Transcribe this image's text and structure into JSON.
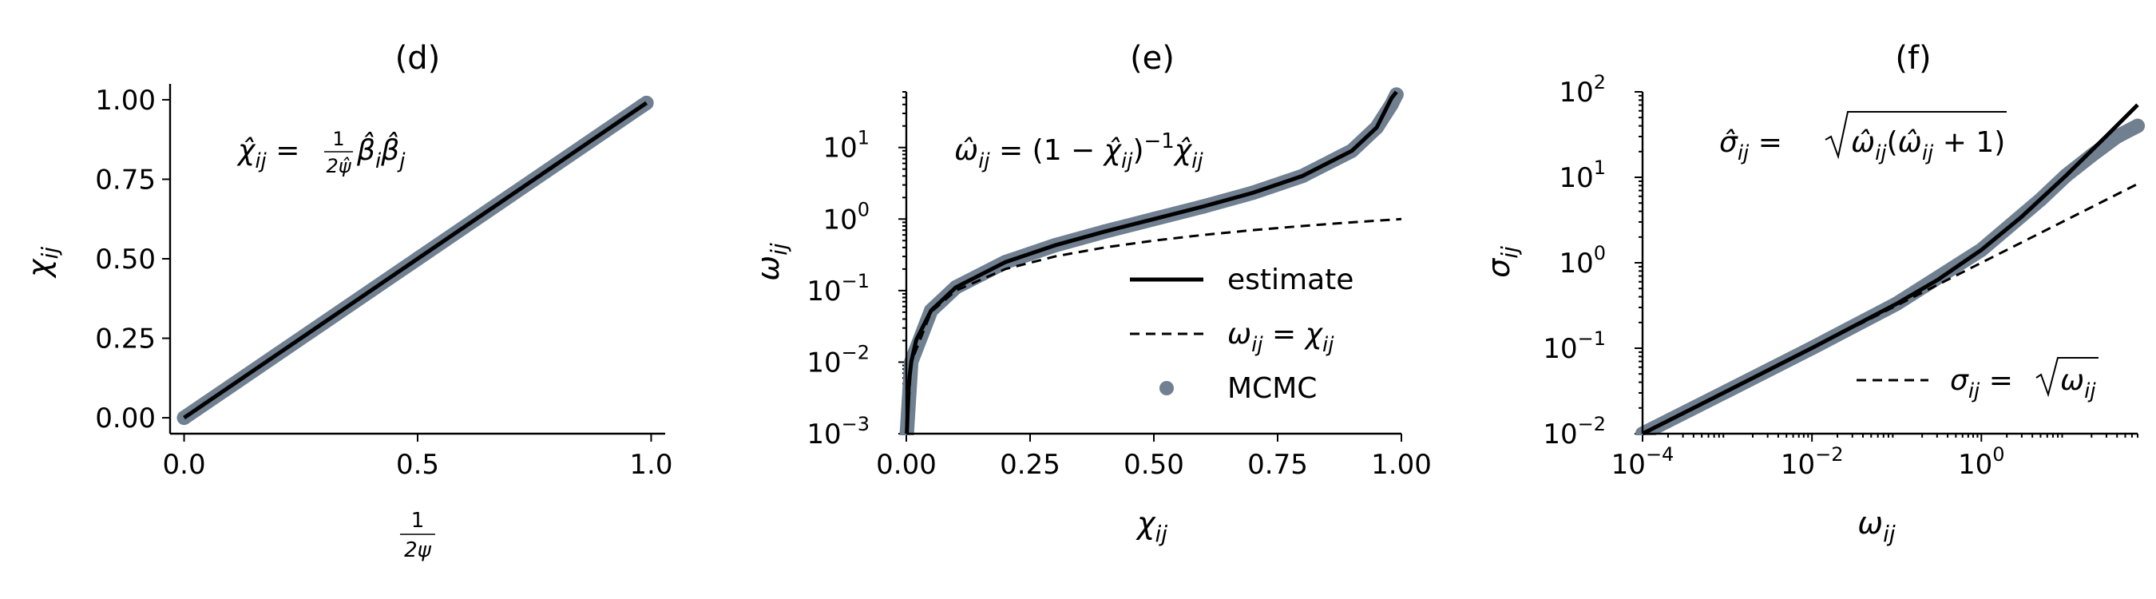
{
  "colors": {
    "estimate": "#000000",
    "mcmc": "#708090",
    "reference": "#000000"
  },
  "chart_data": [
    {
      "type": "scatter",
      "panel": "(d)",
      "title": "(d)",
      "xlabel": "1/(2ψ)",
      "xlabel_num": "1",
      "xlabel_den": "2ψ",
      "ylabel": "χij",
      "xlim": [
        -0.03,
        1.03
      ],
      "ylim": [
        -0.05,
        1.05
      ],
      "xscale": "linear",
      "yscale": "linear",
      "xticks": [
        0.0,
        0.5,
        1.0
      ],
      "xtick_labels": [
        "0.0",
        "0.5",
        "1.0"
      ],
      "yticks": [
        0.0,
        0.25,
        0.5,
        0.75,
        1.0
      ],
      "ytick_labels": [
        "0.00",
        "0.25",
        "0.50",
        "0.75",
        "1.00"
      ],
      "annotation": "χ̂ij = (1/2ψ̂) β̂i β̂j",
      "annotation_parts": {
        "lhs": "χ̂",
        "lhs_sub": "ij",
        "eq": " = ",
        "frac_num": "1",
        "frac_den": "2ψ̂",
        "rhs": "β̂",
        "rhs_sub_a": "i",
        "rhs_b": "β̂",
        "rhs_sub_b": "j"
      },
      "series": [
        {
          "name": "estimate",
          "kind": "line",
          "x": [
            0.0,
            0.99
          ],
          "y": [
            0.0,
            0.99
          ]
        },
        {
          "name": "MCMC",
          "kind": "scatter",
          "x": [
            0.0,
            0.1,
            0.2,
            0.3,
            0.4,
            0.5,
            0.6,
            0.7,
            0.8,
            0.9,
            0.98,
            0.99
          ],
          "y": [
            0.0,
            0.1,
            0.2,
            0.3,
            0.4,
            0.5,
            0.6,
            0.7,
            0.8,
            0.9,
            0.98,
            0.99
          ]
        }
      ],
      "grid": false
    },
    {
      "type": "line",
      "panel": "(e)",
      "title": "(e)",
      "xlabel": "χij",
      "ylabel": "ωij",
      "xlim": [
        0.0,
        1.0
      ],
      "ylim": [
        0.001,
        60
      ],
      "xscale": "linear",
      "yscale": "log",
      "xticks": [
        0.0,
        0.25,
        0.5,
        0.75,
        1.0
      ],
      "xtick_labels": [
        "0.00",
        "0.25",
        "0.50",
        "0.75",
        "1.00"
      ],
      "yticks": [
        0.001,
        0.01,
        0.1,
        1,
        10
      ],
      "ytick_labels": [
        "10",
        "10",
        "10",
        "10",
        "10"
      ],
      "ytick_exponents": [
        "−3",
        "−2",
        "−1",
        "0",
        "1"
      ],
      "annotation": "ω̂ij = (1 − χ̂ij)⁻¹ χ̂ij",
      "annotation_parts": {
        "a": "ω̂",
        "a_sub": "ij",
        "b": " = (1 − ",
        "c": "χ̂",
        "c_sub": "ij",
        "d": ")",
        "d_sup": "−1",
        "e": "χ̂",
        "e_sub": "ij"
      },
      "legend": {
        "placement": "lower-right",
        "entries": [
          {
            "label": "estimate",
            "style": "solid"
          },
          {
            "label": "ωij = χij",
            "style": "dashed"
          },
          {
            "label": "MCMC",
            "style": "marker"
          }
        ]
      },
      "series": [
        {
          "name": "estimate",
          "kind": "line",
          "x": [
            0.001,
            0.005,
            0.01,
            0.02,
            0.05,
            0.1,
            0.2,
            0.3,
            0.4,
            0.5,
            0.6,
            0.7,
            0.8,
            0.9,
            0.95,
            0.98,
            0.99
          ],
          "y": [
            0.001,
            0.005,
            0.0101,
            0.0204,
            0.0526,
            0.111,
            0.25,
            0.429,
            0.667,
            1.0,
            1.5,
            2.33,
            4.0,
            9.0,
            19.0,
            49.0,
            60.0
          ]
        },
        {
          "name": "ωij = χij",
          "kind": "line",
          "x": [
            0.001,
            0.01,
            0.05,
            0.1,
            0.2,
            0.3,
            0.4,
            0.5,
            0.6,
            0.7,
            0.8,
            0.9,
            1.0
          ],
          "y": [
            0.001,
            0.01,
            0.05,
            0.1,
            0.2,
            0.3,
            0.4,
            0.5,
            0.6,
            0.7,
            0.8,
            0.9,
            1.0
          ]
        },
        {
          "name": "MCMC",
          "kind": "scatter",
          "x": [
            0.001,
            0.01,
            0.05,
            0.1,
            0.2,
            0.3,
            0.4,
            0.5,
            0.6,
            0.7,
            0.8,
            0.9,
            0.95,
            0.98,
            0.99
          ],
          "y": [
            0.001,
            0.0101,
            0.0526,
            0.111,
            0.25,
            0.429,
            0.667,
            1.0,
            1.5,
            2.33,
            4.0,
            9.0,
            19.0,
            40.0,
            55.0
          ]
        }
      ],
      "grid": false
    },
    {
      "type": "line",
      "panel": "(f)",
      "title": "(f)",
      "xlabel": "ωij",
      "ylabel": "σij",
      "xlim": [
        0.0001,
        70
      ],
      "ylim": [
        0.01,
        100
      ],
      "xscale": "log",
      "yscale": "log",
      "xticks": [
        0.0001,
        0.01,
        1
      ],
      "xtick_labels": [
        "10",
        "10",
        "10"
      ],
      "xtick_exponents": [
        "−4",
        "−2",
        "0"
      ],
      "yticks": [
        0.01,
        0.1,
        1,
        10,
        100
      ],
      "ytick_labels": [
        "10",
        "10",
        "10",
        "10",
        "10"
      ],
      "ytick_exponents": [
        "−2",
        "−1",
        "0",
        "1",
        "2"
      ],
      "annotation": "σ̂ij = √(ω̂ij(ω̂ij + 1))",
      "annotation_parts": {
        "a": "σ̂",
        "a_sub": "ij",
        "eq": " = ",
        "r1": "ω̂",
        "r1_sub": "ij",
        "r2": "(",
        "r3": "ω̂",
        "r3_sub": "ij",
        "r4": " + 1)"
      },
      "legend": {
        "placement": "lower-right",
        "entries": [
          {
            "label": "σij = √ωij",
            "style": "dashed"
          }
        ]
      },
      "legend_parts": {
        "a": "σ",
        "a_sub": "ij",
        "eq": " = ",
        "r": "ω",
        "r_sub": "ij"
      },
      "series": [
        {
          "name": "estimate",
          "kind": "line",
          "x": [
            0.0001,
            0.001,
            0.01,
            0.1,
            0.3,
            1,
            3,
            10,
            30,
            70
          ],
          "y": [
            0.01,
            0.0316,
            0.1005,
            0.3317,
            0.6245,
            1.414,
            3.464,
            10.49,
            30.5,
            70.5
          ]
        },
        {
          "name": "σij = √ωij",
          "kind": "line",
          "x": [
            0.0001,
            0.01,
            1,
            70
          ],
          "y": [
            0.01,
            0.1,
            1,
            8.37
          ]
        },
        {
          "name": "MCMC",
          "kind": "scatter",
          "x": [
            0.0001,
            0.001,
            0.01,
            0.1,
            1,
            5,
            10,
            20,
            40,
            70
          ],
          "y": [
            0.01,
            0.0316,
            0.1005,
            0.3317,
            1.414,
            5.48,
            10.49,
            18.0,
            30.0,
            40.0
          ]
        }
      ],
      "grid": false
    }
  ]
}
